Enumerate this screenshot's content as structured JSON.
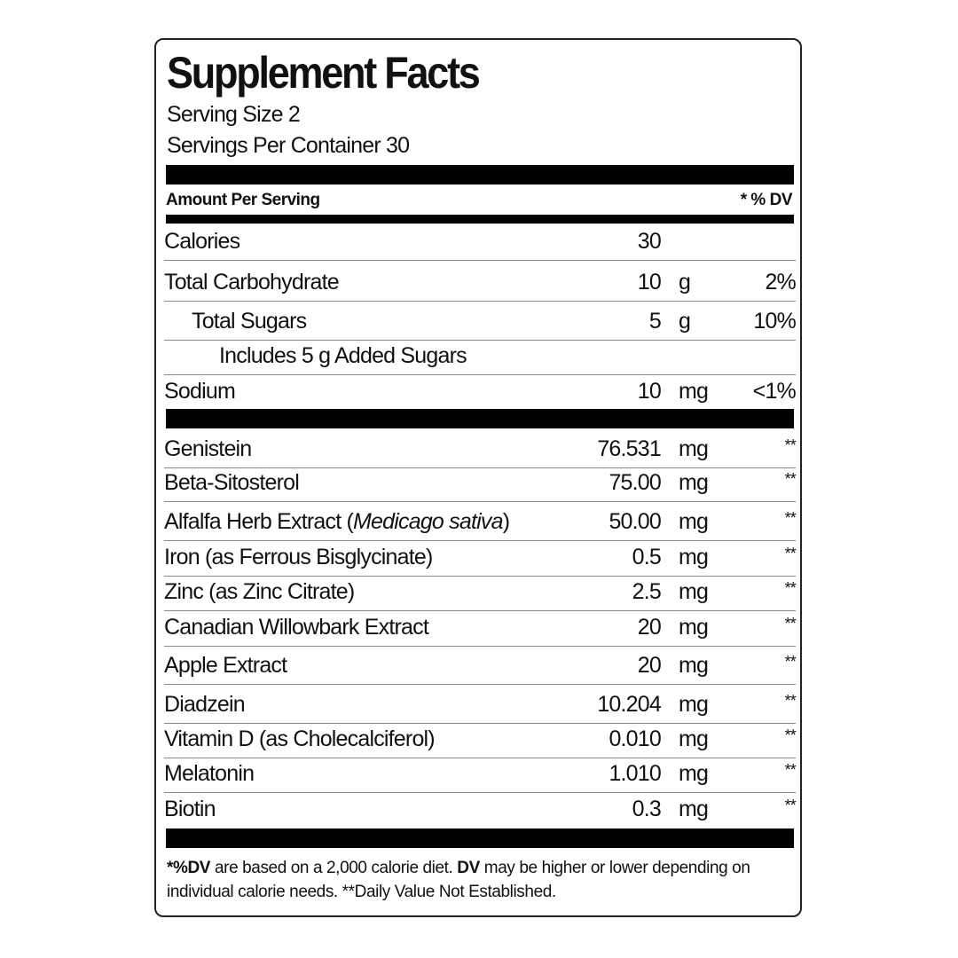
{
  "title": "Supplement Facts",
  "serving_size": "Serving Size  2",
  "servings_per_container": "Servings Per Container   30",
  "header": {
    "amount_per_serving": "Amount Per Serving",
    "dv": "* % DV"
  },
  "nutrients": [
    {
      "name": "Calories",
      "amount": "30",
      "unit": "",
      "dv": "",
      "indent": 0
    },
    {
      "name": "Total Carbohydrate",
      "amount": "10",
      "unit": "g",
      "dv": "2%",
      "indent": 0
    },
    {
      "name": "Total Sugars",
      "amount": "5",
      "unit": "g",
      "dv": "10%",
      "indent": 1
    },
    {
      "name": "Includes 5 g Added Sugars",
      "amount": "",
      "unit": "",
      "dv": "",
      "indent": 2
    },
    {
      "name": "Sodium",
      "amount": "10",
      "unit": "mg",
      "dv": "<1%",
      "indent": 0
    }
  ],
  "ingredients": [
    {
      "name": "Genistein",
      "amount": "76.531",
      "unit": "mg",
      "dv": "**"
    },
    {
      "name": "Beta-Sitosterol",
      "amount": "75.00",
      "unit": "mg",
      "dv": "**"
    },
    {
      "name": "Alfalfa Herb Extract (",
      "italic": "Medicago sativa",
      "name_end": ")",
      "amount": "50.00",
      "unit": "mg",
      "dv": "**"
    },
    {
      "name": "Iron (as Ferrous Bisglycinate)",
      "amount": "0.5",
      "unit": "mg",
      "dv": "**"
    },
    {
      "name": "Zinc (as Zinc Citrate)",
      "amount": "2.5",
      "unit": "mg",
      "dv": "**"
    },
    {
      "name": "Canadian Willowbark Extract",
      "amount": "20",
      "unit": "mg",
      "dv": "**"
    },
    {
      "name": "Apple Extract",
      "amount": "20",
      "unit": "mg",
      "dv": "**"
    },
    {
      "name": "Diadzein",
      "amount": "10.204",
      "unit": "mg",
      "dv": "**"
    },
    {
      "name": "Vitamin D (as Cholecalciferol)",
      "amount": "0.010",
      "unit": "mg",
      "dv": "**"
    },
    {
      "name": "Melatonin",
      "amount": "1.010",
      "unit": "mg",
      "dv": "**"
    },
    {
      "name": "Biotin",
      "amount": "0.3",
      "unit": "mg",
      "dv": "**"
    }
  ],
  "footnote": {
    "p1_bold": "*%DV",
    "p2": " are based on a 2,000 calorie diet. ",
    "p3_bold": "DV",
    "p4": " may be higher or lower depending on individual calorie needs. **Daily Value Not Established."
  }
}
